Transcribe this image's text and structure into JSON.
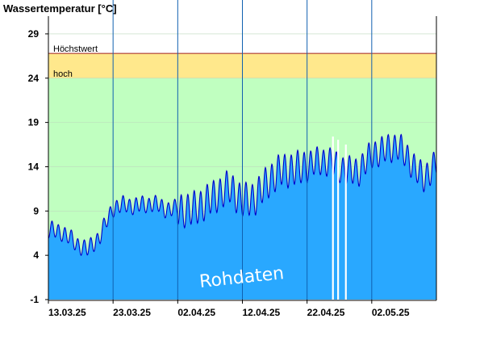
{
  "chart_data": {
    "type": "area",
    "title": "Wassertemperatur [°C]",
    "ylim": [
      -1,
      31
    ],
    "y_ticks": [
      "29",
      "24",
      "19",
      "14",
      "9",
      "4",
      "-1"
    ],
    "x_tick_labels": [
      "13.03.25",
      "23.03.25",
      "02.04.25",
      "12.04.25",
      "22.04.25",
      "02.05.25"
    ],
    "x_range": [
      "13.03.25",
      "12.05.25"
    ],
    "bands": {
      "high_label": "hoch",
      "high_from": 24,
      "max_label": "Höchstwert",
      "max_value": 26.8,
      "normal_color": "#c0ffc0",
      "high_color": "#ffe88c",
      "max_line_color": "#a02020"
    },
    "watermark": "Rohdaten",
    "series": [
      {
        "color": "#0000cc",
        "fill": "#29a8ff",
        "days_from_x_start": [
          0,
          2,
          4,
          6,
          8,
          10,
          12,
          14,
          16,
          18,
          20,
          22,
          24,
          26,
          28,
          30,
          32,
          34,
          36,
          38,
          40,
          42,
          44,
          46,
          48,
          50,
          52,
          54,
          56,
          58,
          60
        ],
        "values": [
          6.8,
          6.7,
          5.5,
          4.6,
          6.2,
          9.4,
          9.7,
          9.6,
          9.9,
          9.3,
          9.2,
          9.1,
          9.8,
          10.8,
          11.7,
          10.1,
          10.5,
          12.4,
          13.6,
          13.7,
          14.1,
          14.7,
          14.4,
          13.5,
          13.5,
          15.4,
          15.9,
          16.4,
          14.6,
          12.6,
          14.5
        ]
      }
    ]
  }
}
